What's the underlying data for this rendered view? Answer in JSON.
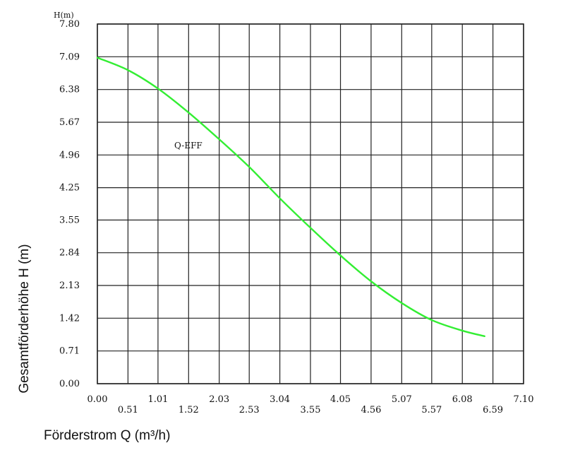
{
  "chart_data": {
    "type": "line",
    "xlabel": "Förderstrom Q (m³/h)",
    "ylabel": "Gesamtförderhöhe H (m)",
    "y_unit_label": "H(m)",
    "xlim": [
      0.0,
      7.1
    ],
    "ylim": [
      0.0,
      7.8
    ],
    "x_ticks": [
      "0.00",
      "0.51",
      "1.01",
      "1.52",
      "2.03",
      "2.53",
      "3.04",
      "3.55",
      "4.05",
      "4.56",
      "5.07",
      "5.57",
      "6.08",
      "6.59",
      "7.10"
    ],
    "y_ticks": [
      "0.00",
      "0.71",
      "1.42",
      "2.13",
      "2.84",
      "3.55",
      "4.25",
      "4.96",
      "5.67",
      "6.38",
      "7.09",
      "7.80"
    ],
    "grid": true,
    "annotation": "Q-EFF",
    "series": [
      {
        "color": "#33ee33",
        "x": [
          0.0,
          0.51,
          1.01,
          1.52,
          2.03,
          2.53,
          3.04,
          3.55,
          4.05,
          4.56,
          5.07,
          5.57,
          6.08,
          6.45
        ],
        "y": [
          7.07,
          6.8,
          6.4,
          5.88,
          5.3,
          4.7,
          4.02,
          3.38,
          2.78,
          2.22,
          1.75,
          1.38,
          1.15,
          1.03
        ]
      }
    ]
  }
}
